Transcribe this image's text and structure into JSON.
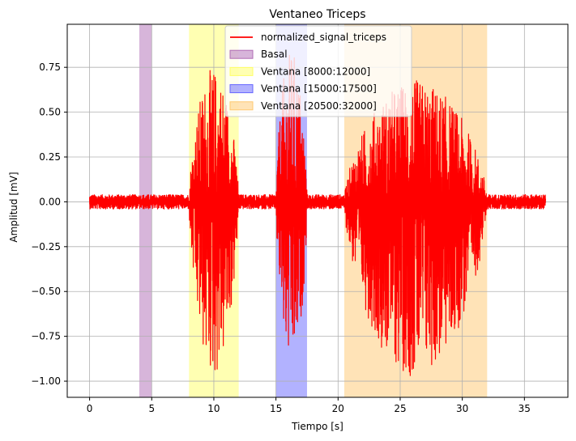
{
  "chart_data": {
    "type": "line",
    "title": "Ventaneo Triceps",
    "xlabel": "Tiempo [s]",
    "ylabel": "Amplitud [mV]",
    "xlim": [
      -1.8,
      38.5
    ],
    "ylim": [
      -1.09,
      0.99
    ],
    "xticks": [
      0,
      5,
      10,
      15,
      20,
      25,
      30,
      35
    ],
    "yticks": [
      -1.0,
      -0.75,
      -0.5,
      -0.25,
      0.0,
      0.25,
      0.5,
      0.75
    ],
    "xtick_labels": [
      "0",
      "5",
      "10",
      "15",
      "20",
      "25",
      "30",
      "35"
    ],
    "ytick_labels": [
      "−1.00",
      "−0.75",
      "−0.50",
      "−0.25",
      "0.00",
      "0.25",
      "0.50",
      "0.75"
    ],
    "grid": true,
    "legend_position": "upper-center",
    "series": [
      {
        "name": "normalized_signal_triceps",
        "color": "#ff0000",
        "x_range": [
          0,
          36.7
        ],
        "baseline_amplitude": 0.04,
        "bursts": [
          {
            "x_start": 8.0,
            "x_end": 12.0,
            "max": 0.75,
            "min": -0.99
          },
          {
            "x_start": 15.0,
            "x_end": 17.5,
            "max": 0.85,
            "min": -0.95
          },
          {
            "x_start": 20.5,
            "x_end": 32.0,
            "max": 0.68,
            "min": -0.98
          }
        ]
      }
    ],
    "spans": [
      {
        "name": "Basal",
        "x_start": 4.0,
        "x_end": 5.0,
        "color": "#b06cb5"
      },
      {
        "name": "Ventana [8000:12000]",
        "x_start": 8.0,
        "x_end": 12.0,
        "color": "#ffff66"
      },
      {
        "name": "Ventana [15000:17500]",
        "x_start": 15.0,
        "x_end": 17.5,
        "color": "#6666ff"
      },
      {
        "name": "Ventana [20500:32000]",
        "x_start": 20.5,
        "x_end": 32.0,
        "color": "#ffc870"
      }
    ]
  }
}
